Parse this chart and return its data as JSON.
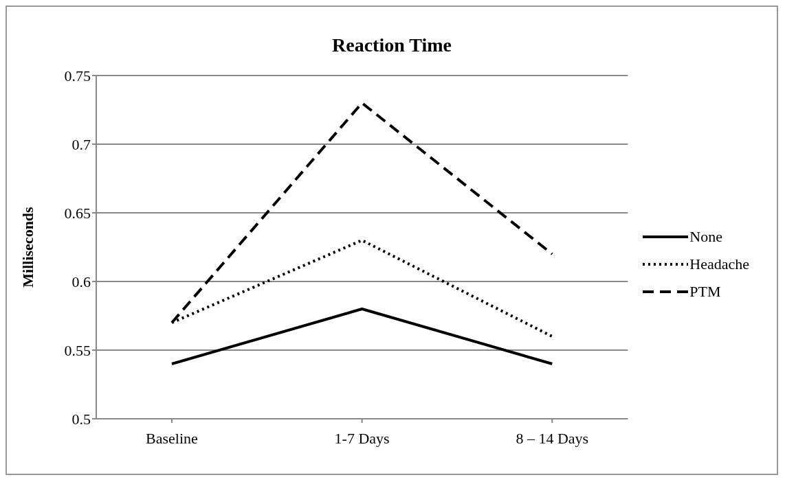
{
  "chart_data": {
    "type": "line",
    "title": "Reaction Time",
    "ylabel": "Milliseconds",
    "categories": [
      "Baseline",
      "1-7 Days",
      "8 – 14 Days"
    ],
    "series": [
      {
        "name": "None",
        "color": "#000000",
        "line_style": "solid",
        "values": [
          0.54,
          0.58,
          0.54
        ]
      },
      {
        "name": "Headache",
        "color": "#000000",
        "line_style": "dotted",
        "values": [
          0.57,
          0.63,
          0.56
        ]
      },
      {
        "name": "PTM",
        "color": "#000000",
        "line_style": "dashed",
        "values": [
          0.57,
          0.73,
          0.62
        ]
      }
    ],
    "ylim": [
      0.5,
      0.75
    ],
    "yticks": [
      0.5,
      0.55,
      0.6,
      0.65,
      0.7,
      0.75
    ],
    "grid": "y",
    "legend": "right"
  }
}
